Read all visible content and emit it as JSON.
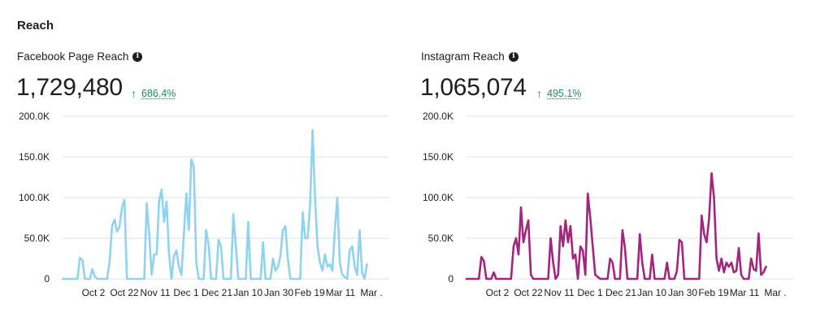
{
  "section": {
    "title": "Reach"
  },
  "chart_data": [
    {
      "type": "line",
      "title": "Facebook Page Reach",
      "total": "1,729,480",
      "change": "686.4%",
      "color": "#8fd3f0",
      "ylim": [
        0,
        200000
      ],
      "y_ticks": [
        "0",
        "50.0K",
        "100.0K",
        "150.0K",
        "200.0K"
      ],
      "x_ticks": [
        "Oct 2",
        "Oct 22",
        "Nov 11",
        "Dec 1",
        "Dec 21",
        "Jan 10",
        "Jan 30",
        "Feb 19",
        "Mar 11",
        "Mar ."
      ],
      "x_domain": [
        0,
        132
      ],
      "series": [
        {
          "points": [
            [
              0,
              0
            ],
            [
              6,
              0
            ],
            [
              7,
              26000
            ],
            [
              8,
              23000
            ],
            [
              9,
              0
            ],
            [
              11,
              0
            ],
            [
              12,
              12000
            ],
            [
              13,
              3000
            ],
            [
              14,
              0
            ],
            [
              18,
              0
            ],
            [
              19,
              22000
            ],
            [
              20,
              65000
            ],
            [
              21,
              73000
            ],
            [
              22,
              58000
            ],
            [
              23,
              64000
            ],
            [
              24,
              88000
            ],
            [
              25,
              97000
            ],
            [
              26,
              0
            ],
            [
              33,
              0
            ],
            [
              34,
              93000
            ],
            [
              35,
              55000
            ],
            [
              36,
              5000
            ],
            [
              37,
              30000
            ],
            [
              38,
              30000
            ],
            [
              39,
              96000
            ],
            [
              40,
              110000
            ],
            [
              41,
              70000
            ],
            [
              42,
              95000
            ],
            [
              43,
              30000
            ],
            [
              44,
              0
            ],
            [
              45,
              28000
            ],
            [
              46,
              35000
            ],
            [
              47,
              15000
            ],
            [
              48,
              5000
            ],
            [
              50,
              105000
            ],
            [
              51,
              60000
            ],
            [
              52,
              147000
            ],
            [
              53,
              138000
            ],
            [
              54,
              20000
            ],
            [
              55,
              0
            ],
            [
              56,
              0
            ],
            [
              57,
              0
            ],
            [
              58,
              60000
            ],
            [
              59,
              42000
            ],
            [
              60,
              0
            ],
            [
              62,
              0
            ],
            [
              63,
              48000
            ],
            [
              64,
              40000
            ],
            [
              65,
              0
            ],
            [
              68,
              0
            ],
            [
              69,
              80000
            ],
            [
              70,
              40000
            ],
            [
              71,
              0
            ],
            [
              74,
              0
            ],
            [
              75,
              70000
            ],
            [
              76,
              0
            ],
            [
              80,
              0
            ],
            [
              81,
              45000
            ],
            [
              82,
              0
            ],
            [
              84,
              0
            ],
            [
              85,
              25000
            ],
            [
              86,
              10000
            ],
            [
              87,
              15000
            ],
            [
              88,
              28000
            ],
            [
              89,
              60000
            ],
            [
              90,
              65000
            ],
            [
              91,
              25000
            ],
            [
              92,
              0
            ],
            [
              96,
              0
            ],
            [
              97,
              82000
            ],
            [
              98,
              50000
            ],
            [
              99,
              50000
            ],
            [
              100,
              90000
            ],
            [
              101,
              183000
            ],
            [
              102,
              100000
            ],
            [
              103,
              40000
            ],
            [
              104,
              20000
            ],
            [
              105,
              10000
            ],
            [
              106,
              30000
            ],
            [
              107,
              15000
            ],
            [
              108,
              18000
            ],
            [
              109,
              10000
            ],
            [
              110,
              60000
            ],
            [
              111,
              100000
            ],
            [
              112,
              20000
            ],
            [
              113,
              5000
            ],
            [
              115,
              0
            ],
            [
              116,
              35000
            ],
            [
              117,
              40000
            ],
            [
              118,
              15000
            ],
            [
              119,
              5000
            ],
            [
              120,
              60000
            ],
            [
              121,
              8000
            ],
            [
              122,
              0
            ],
            [
              123,
              18000
            ]
          ]
        }
      ]
    },
    {
      "type": "line",
      "title": "Instagram Reach",
      "total": "1,065,074",
      "change": "495.1%",
      "color": "#a3267e",
      "ylim": [
        0,
        200000
      ],
      "y_ticks": [
        "0",
        "50.0K",
        "100.0K",
        "150.0K",
        "200.0K"
      ],
      "x_ticks": [
        "Oct 2",
        "Oct 22",
        "Nov 11",
        "Dec 1",
        "Dec 21",
        "Jan 10",
        "Jan 30",
        "Feb 19",
        "Mar 11",
        "Mar ."
      ],
      "x_domain": [
        0,
        132
      ],
      "series": [
        {
          "points": [
            [
              0,
              0
            ],
            [
              5,
              0
            ],
            [
              6,
              27000
            ],
            [
              7,
              22000
            ],
            [
              8,
              0
            ],
            [
              10,
              0
            ],
            [
              11,
              8000
            ],
            [
              12,
              0
            ],
            [
              18,
              0
            ],
            [
              19,
              40000
            ],
            [
              20,
              50000
            ],
            [
              21,
              30000
            ],
            [
              22,
              88000
            ],
            [
              23,
              45000
            ],
            [
              24,
              60000
            ],
            [
              25,
              72000
            ],
            [
              26,
              5000
            ],
            [
              27,
              0
            ],
            [
              33,
              0
            ],
            [
              34,
              50000
            ],
            [
              35,
              20000
            ],
            [
              36,
              0
            ],
            [
              37,
              5000
            ],
            [
              38,
              65000
            ],
            [
              39,
              40000
            ],
            [
              40,
              72000
            ],
            [
              41,
              45000
            ],
            [
              42,
              65000
            ],
            [
              43,
              25000
            ],
            [
              44,
              30000
            ],
            [
              45,
              0
            ],
            [
              46,
              40000
            ],
            [
              47,
              35000
            ],
            [
              48,
              5000
            ],
            [
              49,
              105000
            ],
            [
              50,
              75000
            ],
            [
              51,
              40000
            ],
            [
              52,
              5000
            ],
            [
              54,
              0
            ],
            [
              57,
              0
            ],
            [
              58,
              25000
            ],
            [
              59,
              20000
            ],
            [
              60,
              0
            ],
            [
              62,
              0
            ],
            [
              63,
              60000
            ],
            [
              64,
              38000
            ],
            [
              65,
              0
            ],
            [
              69,
              0
            ],
            [
              70,
              55000
            ],
            [
              71,
              20000
            ],
            [
              72,
              0
            ],
            [
              74,
              0
            ],
            [
              75,
              30000
            ],
            [
              76,
              0
            ],
            [
              80,
              0
            ],
            [
              81,
              20000
            ],
            [
              82,
              0
            ],
            [
              84,
              0
            ],
            [
              85,
              10000
            ],
            [
              86,
              48000
            ],
            [
              87,
              45000
            ],
            [
              88,
              0
            ],
            [
              94,
              0
            ],
            [
              95,
              78000
            ],
            [
              96,
              55000
            ],
            [
              97,
              45000
            ],
            [
              98,
              75000
            ],
            [
              99,
              130000
            ],
            [
              100,
              100000
            ],
            [
              101,
              25000
            ],
            [
              102,
              10000
            ],
            [
              103,
              25000
            ],
            [
              104,
              8000
            ],
            [
              105,
              20000
            ],
            [
              106,
              15000
            ],
            [
              107,
              20000
            ],
            [
              108,
              8000
            ],
            [
              109,
              10000
            ],
            [
              110,
              38000
            ],
            [
              111,
              5000
            ],
            [
              112,
              0
            ],
            [
              114,
              0
            ],
            [
              115,
              25000
            ],
            [
              116,
              12000
            ],
            [
              117,
              10000
            ],
            [
              118,
              56000
            ],
            [
              119,
              5000
            ],
            [
              120,
              8000
            ],
            [
              121,
              15000
            ]
          ]
        }
      ]
    }
  ]
}
